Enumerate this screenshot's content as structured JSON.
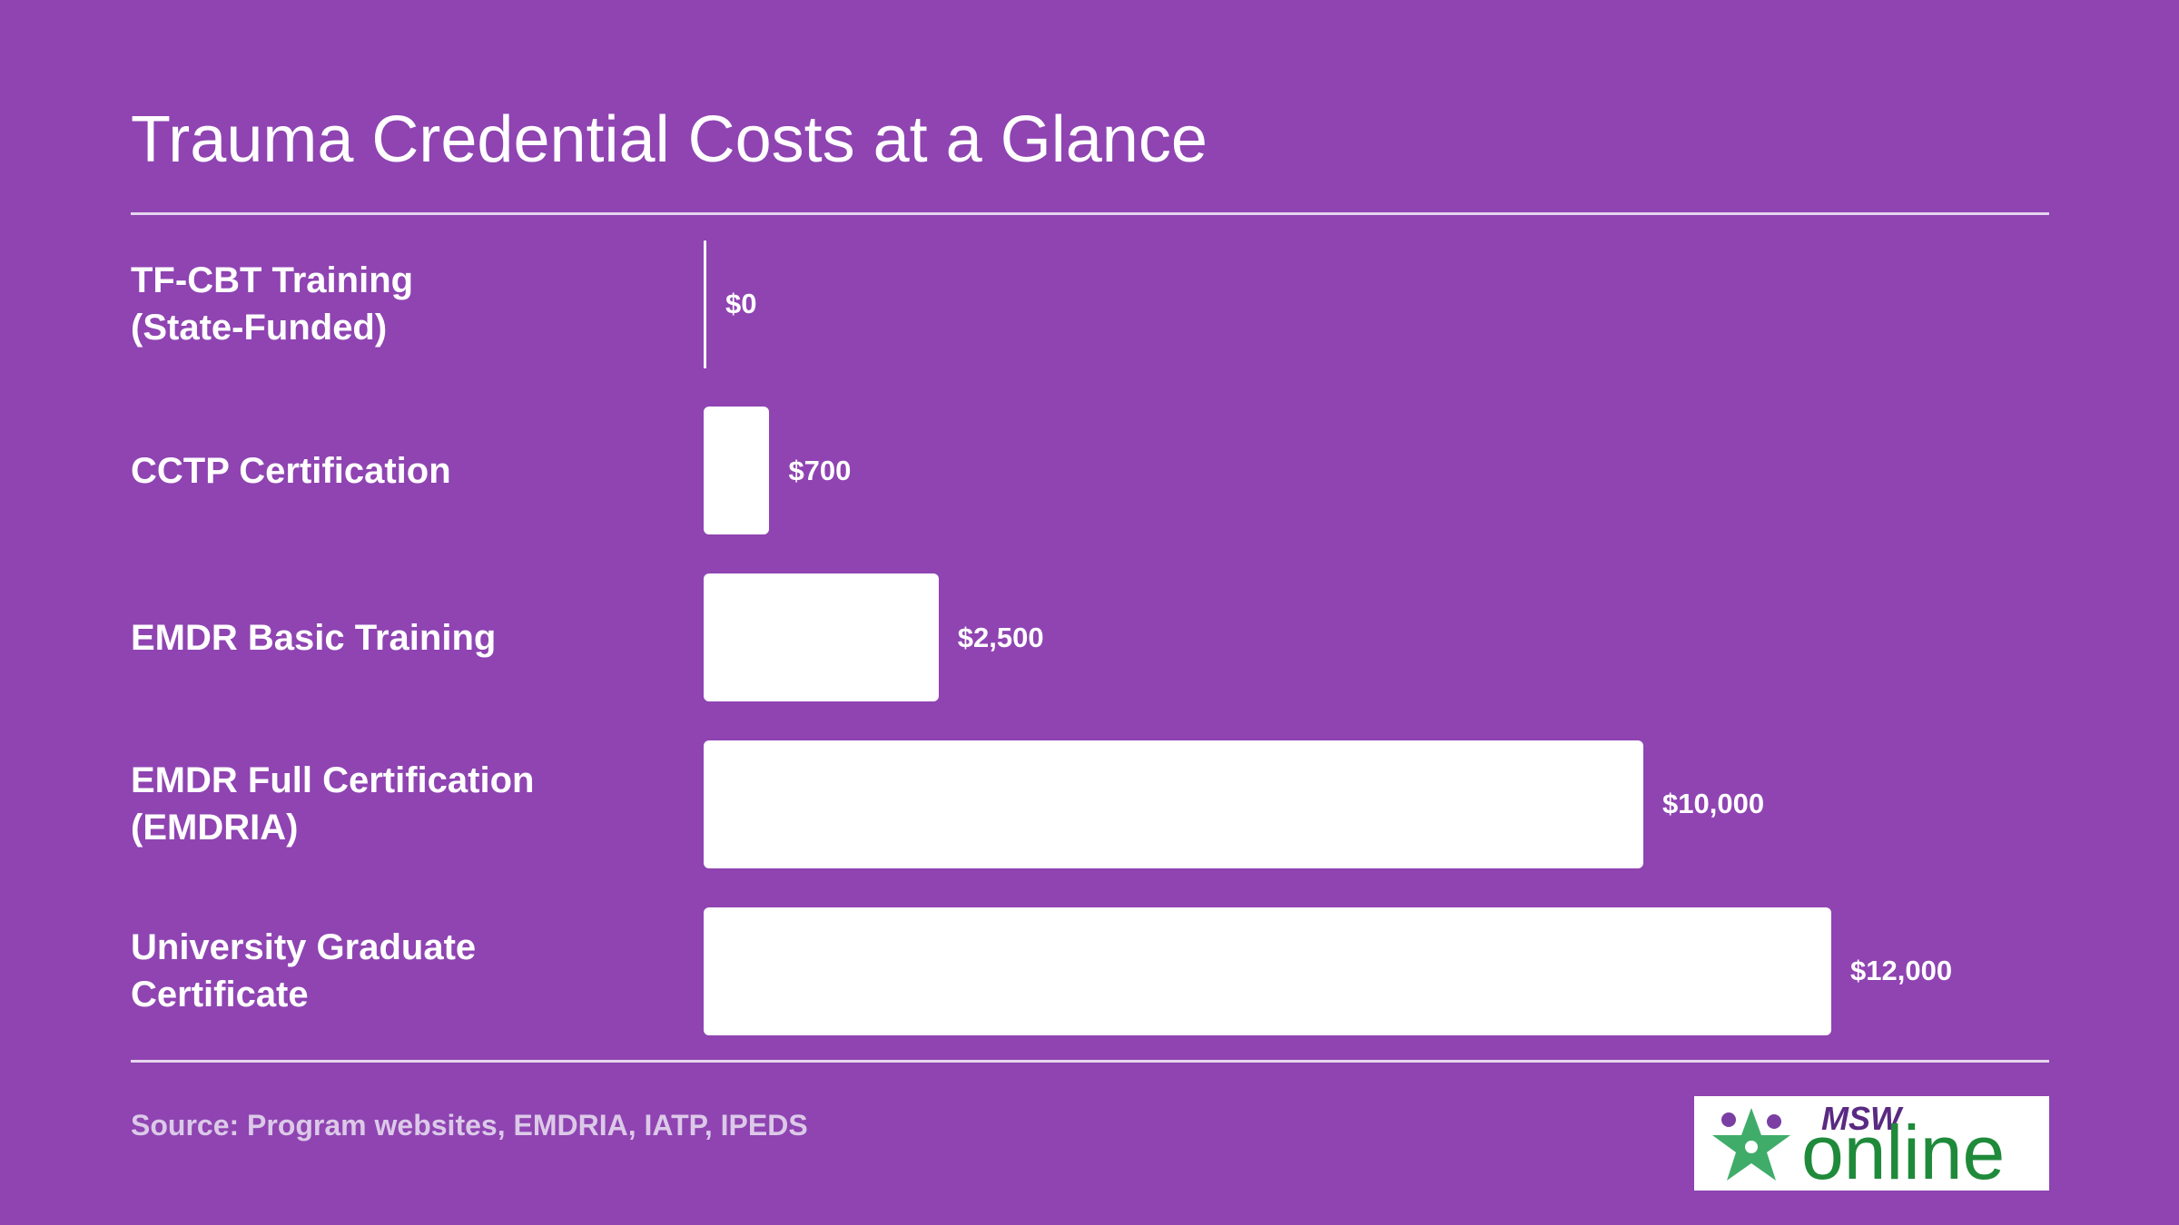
{
  "chart_data": {
    "type": "bar",
    "orientation": "horizontal",
    "title": "Trauma Credential Costs at a Glance",
    "categories": [
      "TF-CBT Training\n(State-Funded)",
      "CCTP Certification",
      "EMDR Basic Training",
      "EMDR Full Certification\n(EMDRIA)",
      "University Graduate\nCertificate"
    ],
    "values": [
      0,
      700,
      2500,
      10000,
      12000
    ],
    "value_labels": [
      "$0",
      "$700",
      "$2,500",
      "$10,000",
      "$12,000"
    ],
    "color": "#ffffff",
    "source": "Source: Program websites, EMDRIA, IATP, IPEDS"
  },
  "logo": {
    "top": "MSW",
    "bottom": "online"
  }
}
